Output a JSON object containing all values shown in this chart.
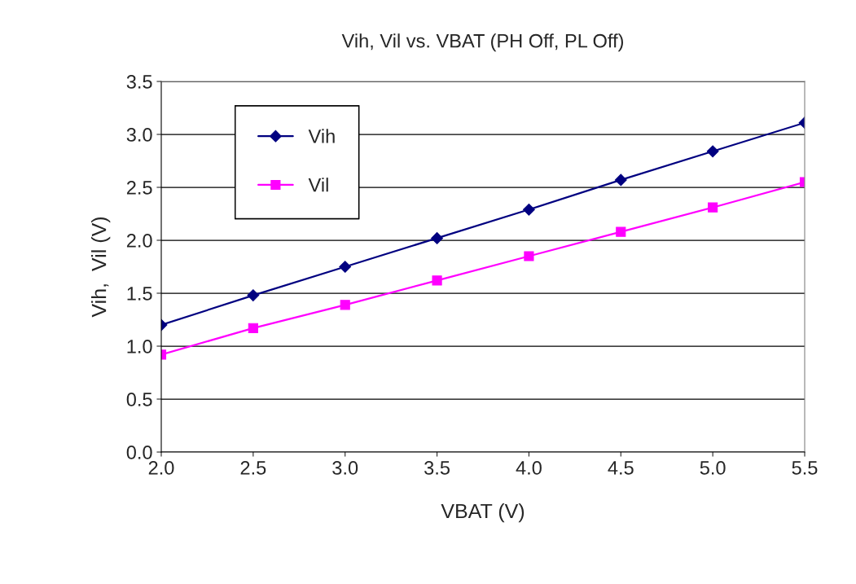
{
  "chart_data": {
    "type": "line",
    "title": "Vih, Vil vs. VBAT (PH Off, PL Off)",
    "xlabel": "VBAT (V)",
    "ylabel": "Vih,  Vil (V)",
    "x": [
      2.0,
      2.5,
      3.0,
      3.5,
      4.0,
      4.5,
      5.0,
      5.5
    ],
    "series": [
      {
        "name": "Vih",
        "color": "#000080",
        "marker": "diamond",
        "values": [
          1.2,
          1.48,
          1.75,
          2.02,
          2.29,
          2.57,
          2.84,
          3.11
        ]
      },
      {
        "name": "Vil",
        "color": "#ff00ff",
        "marker": "square",
        "values": [
          0.92,
          1.17,
          1.39,
          1.62,
          1.85,
          2.08,
          2.31,
          2.55
        ]
      }
    ],
    "xlim": [
      2.0,
      5.5
    ],
    "ylim": [
      0.0,
      3.5
    ],
    "xticks": [
      {
        "value": 2.0,
        "label": "2.0"
      },
      {
        "value": 2.5,
        "label": "2.5"
      },
      {
        "value": 3.0,
        "label": "3.0"
      },
      {
        "value": 3.5,
        "label": "3.5"
      },
      {
        "value": 4.0,
        "label": "4.0"
      },
      {
        "value": 4.5,
        "label": "4.5"
      },
      {
        "value": 5.0,
        "label": "5.0"
      },
      {
        "value": 5.5,
        "label": "5.5"
      }
    ],
    "yticks": [
      {
        "value": 0.0,
        "label": "0.0"
      },
      {
        "value": 0.5,
        "label": "0.5"
      },
      {
        "value": 1.0,
        "label": "1.0"
      },
      {
        "value": 1.5,
        "label": "1.5"
      },
      {
        "value": 2.0,
        "label": "2.0"
      },
      {
        "value": 2.5,
        "label": "2.5"
      },
      {
        "value": 3.0,
        "label": "3.0"
      },
      {
        "value": 3.5,
        "label": "3.5"
      }
    ],
    "grid": "y",
    "legend": "top left",
    "line_style": "solid"
  }
}
